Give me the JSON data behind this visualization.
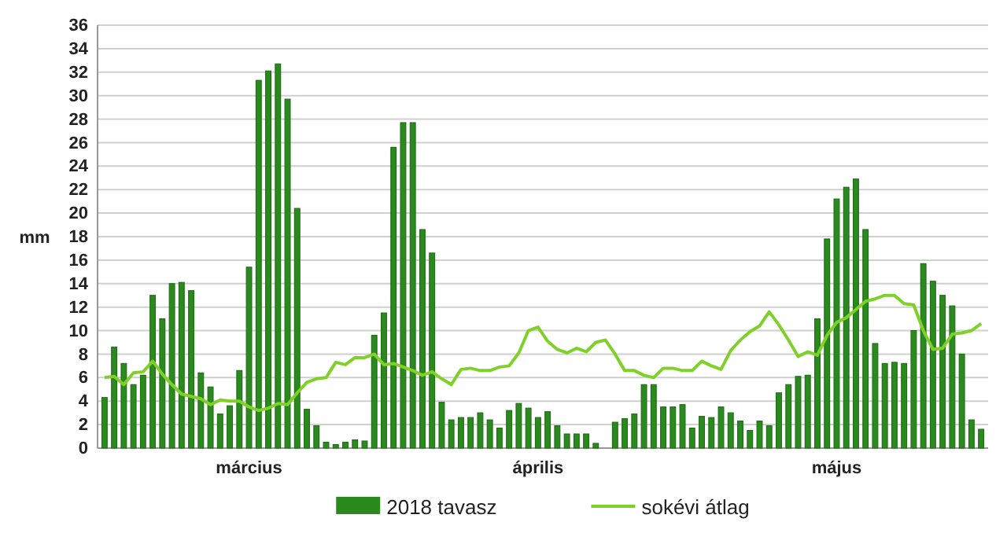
{
  "chart_data": {
    "type": "bar",
    "ylabel": "mm",
    "categories": [
      null,
      null,
      null,
      null,
      null,
      null,
      null,
      null,
      null,
      null,
      null,
      null,
      null,
      null,
      null,
      "március",
      null,
      null,
      null,
      null,
      null,
      null,
      null,
      null,
      null,
      null,
      null,
      null,
      null,
      null,
      null,
      null,
      null,
      null,
      null,
      null,
      null,
      null,
      null,
      null,
      null,
      null,
      null,
      null,
      null,
      "április",
      null,
      null,
      null,
      null,
      null,
      null,
      null,
      null,
      null,
      null,
      null,
      null,
      null,
      null,
      null,
      null,
      null,
      null,
      null,
      null,
      null,
      null,
      null,
      null,
      null,
      null,
      null,
      null,
      null,
      null,
      "május",
      null,
      null,
      null,
      null,
      null,
      null,
      null,
      null,
      null,
      null,
      null,
      null,
      null,
      null,
      null
    ],
    "ylim": [
      0,
      36
    ],
    "yticks": [
      0,
      2,
      4,
      6,
      8,
      10,
      12,
      14,
      16,
      18,
      20,
      22,
      24,
      26,
      28,
      30,
      32,
      34,
      36
    ],
    "grid": "y",
    "legend": "bottom",
    "marker": "none",
    "line_style": "solid",
    "series": [
      {
        "name": "2018 tavasz",
        "color": "#2a8a1e",
        "values": [
          4.3,
          8.6,
          7.2,
          5.4,
          6.2,
          13.0,
          11.0,
          14.0,
          14.1,
          13.4,
          6.4,
          5.2,
          2.9,
          3.6,
          6.6,
          15.4,
          31.3,
          32.1,
          32.7,
          29.7,
          20.4,
          3.3,
          1.9,
          0.5,
          0.3,
          0.5,
          0.7,
          0.6,
          9.6,
          11.5,
          25.6,
          27.7,
          27.7,
          18.6,
          16.6,
          3.9,
          2.4,
          2.6,
          2.6,
          3.0,
          2.4,
          1.7,
          3.2,
          3.8,
          3.4,
          2.6,
          3.1,
          1.9,
          1.2,
          1.2,
          1.2,
          0.4,
          0.0,
          2.2,
          2.5,
          2.9,
          5.4,
          5.4,
          3.5,
          3.5,
          3.7,
          1.7,
          2.7,
          2.6,
          3.5,
          3.0,
          2.3,
          1.5,
          2.3,
          1.9,
          4.7,
          5.4,
          6.1,
          6.2,
          11.0,
          17.8,
          21.2,
          22.2,
          22.9,
          18.6,
          8.9,
          7.2,
          7.3,
          7.2,
          10.0,
          15.7,
          14.2,
          13.0,
          12.1,
          8.0,
          2.4,
          1.6
        ]
      },
      {
        "name": "sokévi átlag",
        "type": "line",
        "color": "#7fd12a",
        "values": [
          6.0,
          6.1,
          5.4,
          6.4,
          6.5,
          7.4,
          6.3,
          5.4,
          4.6,
          4.4,
          4.2,
          3.7,
          4.1,
          4.0,
          4.0,
          3.5,
          3.2,
          3.4,
          3.8,
          3.7,
          4.7,
          5.6,
          5.9,
          6.0,
          7.3,
          7.1,
          7.7,
          7.7,
          8.0,
          7.1,
          7.2,
          6.9,
          6.6,
          6.2,
          6.5,
          5.9,
          5.4,
          6.7,
          6.8,
          6.6,
          6.6,
          6.9,
          7.0,
          8.1,
          10.0,
          10.3,
          9.1,
          8.4,
          8.1,
          8.5,
          8.2,
          9.0,
          9.2,
          8.0,
          6.6,
          6.6,
          6.2,
          6.0,
          6.8,
          6.8,
          6.6,
          6.6,
          7.4,
          7.0,
          6.7,
          8.3,
          9.2,
          9.9,
          10.4,
          11.6,
          10.5,
          9.2,
          7.8,
          8.2,
          7.9,
          9.6,
          10.7,
          11.1,
          11.8,
          12.5,
          12.7,
          13.0,
          13.0,
          12.3,
          12.2,
          10.0,
          8.4,
          8.5,
          9.7,
          9.8,
          10.0,
          10.6
        ]
      }
    ]
  }
}
